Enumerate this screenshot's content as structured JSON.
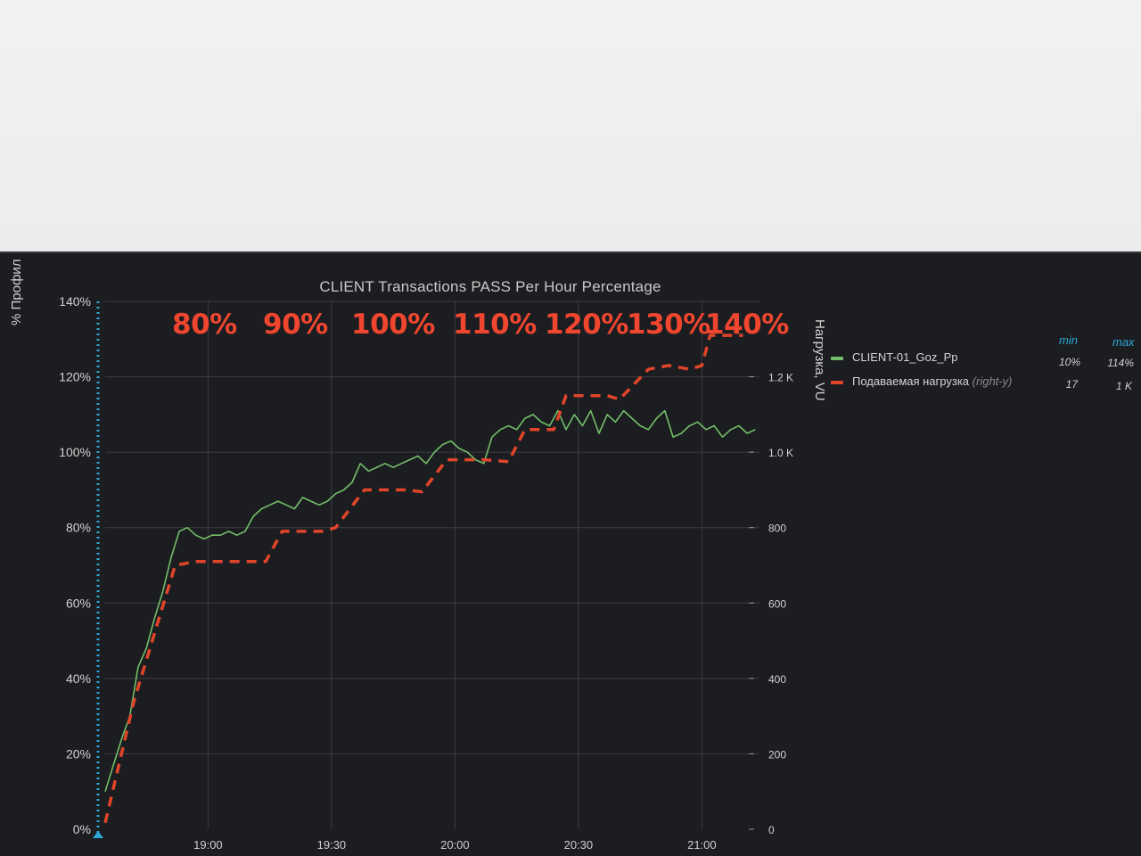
{
  "panel": {
    "title": "CLIENT Transactions PASS Per Hour Percentage",
    "left_axis_title": "% Профил",
    "right_axis_title": "Нагрузка, VU"
  },
  "overlay_labels": [
    "80%",
    "90%",
    "100%",
    "110%",
    "120%",
    "130%",
    "140%"
  ],
  "legend": {
    "min_header": "min",
    "max_header": "max",
    "items": [
      {
        "name": "CLIENT-01_Goz_Pp",
        "suffix": "",
        "min": "10%",
        "max": "114%",
        "color": "#73bf69"
      },
      {
        "name": "Подаваемая нагрузка",
        "suffix": "(right-y)",
        "min": "17",
        "max": "1 K",
        "color": "#e0452a"
      }
    ]
  },
  "colors": {
    "background": "#1c1d20",
    "grid": "#3c3d42",
    "green_series": "#73bf69",
    "red_series": "#e0452a",
    "annotation": "#2aa9d8",
    "overlay_text": "#f0462f"
  },
  "chart_data": {
    "type": "line",
    "title": "CLIENT Transactions PASS Per Hour Percentage",
    "x_unit": "time (HH:MM)",
    "x_ticks": [
      "19:00",
      "19:30",
      "20:00",
      "20:30",
      "21:00"
    ],
    "xlim": [
      "18:35",
      "21:14"
    ],
    "left_y": {
      "label": "% Профил",
      "ticks": [
        "0%",
        "20%",
        "40%",
        "60%",
        "80%",
        "100%",
        "120%",
        "140%"
      ],
      "ylim": [
        0,
        140
      ]
    },
    "right_y": {
      "label": "Нагрузка, VU",
      "ticks": [
        "0",
        "200",
        "400",
        "600",
        "800",
        "1.0 K",
        "1.2 K"
      ],
      "ylim": [
        0,
        1400
      ]
    },
    "grid": true,
    "legend_position": "right",
    "series": [
      {
        "name": "CLIENT-01_Goz_Pp",
        "axis": "left",
        "style": "solid",
        "x": [
          "18:35",
          "18:37",
          "18:39",
          "18:41",
          "18:43",
          "18:45",
          "18:47",
          "18:49",
          "18:51",
          "18:53",
          "18:55",
          "18:57",
          "18:59",
          "19:01",
          "19:03",
          "19:05",
          "19:07",
          "19:09",
          "19:11",
          "19:13",
          "19:15",
          "19:17",
          "19:19",
          "19:21",
          "19:23",
          "19:25",
          "19:27",
          "19:29",
          "19:31",
          "19:33",
          "19:35",
          "19:37",
          "19:39",
          "19:41",
          "19:43",
          "19:45",
          "19:47",
          "19:49",
          "19:51",
          "19:53",
          "19:55",
          "19:57",
          "19:59",
          "20:01",
          "20:03",
          "20:05",
          "20:07",
          "20:09",
          "20:11",
          "20:13",
          "20:15",
          "20:17",
          "20:19",
          "20:21",
          "20:23",
          "20:25",
          "20:27",
          "20:29",
          "20:31",
          "20:33",
          "20:35",
          "20:37",
          "20:39",
          "20:41",
          "20:43",
          "20:45",
          "20:47",
          "20:49",
          "20:51",
          "20:53",
          "20:55",
          "20:57",
          "20:59",
          "21:01",
          "21:03",
          "21:05",
          "21:07",
          "21:09",
          "21:11",
          "21:13"
        ],
        "y": [
          10,
          17,
          24,
          30,
          43,
          48,
          56,
          63,
          72,
          79,
          80,
          78,
          77,
          78,
          78,
          79,
          78,
          79,
          83,
          85,
          86,
          87,
          86,
          85,
          88,
          87,
          86,
          87,
          89,
          90,
          92,
          97,
          95,
          96,
          97,
          96,
          97,
          98,
          99,
          97,
          100,
          102,
          103,
          101,
          100,
          98,
          97,
          104,
          106,
          107,
          106,
          109,
          110,
          108,
          107,
          111,
          106,
          110,
          107,
          111,
          105,
          110,
          108,
          111,
          109,
          107,
          106,
          109,
          111,
          104,
          105,
          107,
          108,
          106,
          107,
          104,
          106,
          107,
          105,
          106
        ]
      },
      {
        "name": "Подаваемая нагрузка",
        "axis": "right",
        "style": "dashed",
        "x": [
          "18:35",
          "18:42",
          "18:52",
          "18:57",
          "19:14",
          "19:18",
          "19:28",
          "19:31",
          "19:38",
          "19:48",
          "19:52",
          "19:58",
          "20:07",
          "20:13",
          "20:17",
          "20:24",
          "20:27",
          "20:37",
          "20:40",
          "20:47",
          "20:52",
          "20:57",
          "21:00",
          "21:02",
          "21:10"
        ],
        "y": [
          17,
          340,
          700,
          710,
          710,
          790,
          790,
          800,
          900,
          900,
          895,
          980,
          980,
          975,
          1060,
          1060,
          1150,
          1150,
          1140,
          1220,
          1230,
          1220,
          1230,
          1310,
          1310
        ]
      }
    ]
  }
}
